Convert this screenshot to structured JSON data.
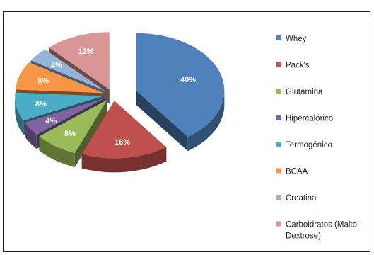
{
  "chart_data": {
    "type": "pie",
    "style": "3d-exploded",
    "legend_position": "right",
    "title": "",
    "categories": [
      "Whey",
      "Pack's",
      "Glutamina",
      "Hipercalórico",
      "Termogênico",
      "BCAA",
      "Creatina",
      "Carboidratos (Malto, Dextrose)"
    ],
    "values": [
      40,
      16,
      8,
      4,
      8,
      8,
      4,
      12
    ],
    "data_labels": [
      "40%",
      "16%",
      "8%",
      "4%",
      "8%",
      "8%",
      "4%",
      "12%"
    ],
    "legend_lines": [
      [
        "Whey"
      ],
      [
        "Pack's"
      ],
      [
        "Glutamina"
      ],
      [
        "Hipercalórico"
      ],
      [
        "Termogênico"
      ],
      [
        "BCAA"
      ],
      [
        "Creatina"
      ],
      [
        "Carboidratos (Malto,",
        "Dextrose)"
      ]
    ],
    "colors": [
      "#4F81BD",
      "#C0504D",
      "#9BBB59",
      "#8064A2",
      "#4BACC6",
      "#F79646",
      "#95B3D7",
      "#D99694"
    ]
  }
}
